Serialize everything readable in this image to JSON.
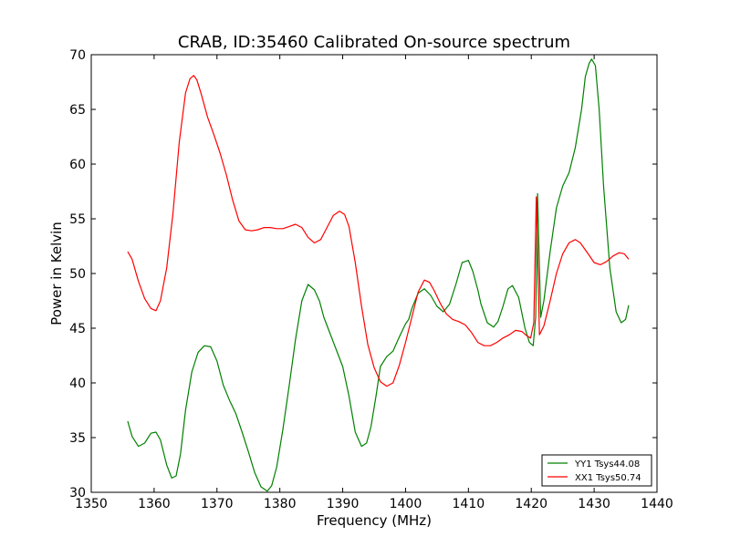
{
  "chart_data": {
    "type": "line",
    "title": "CRAB, ID:35460 Calibrated On-source spectrum",
    "xlabel": "Frequency (MHz)",
    "ylabel": "Power in Kelvin",
    "xlim": [
      1350,
      1440
    ],
    "ylim": [
      30,
      70
    ],
    "xticks": [
      1350,
      1360,
      1370,
      1380,
      1390,
      1400,
      1410,
      1420,
      1430,
      1440
    ],
    "yticks": [
      30,
      35,
      40,
      45,
      50,
      55,
      60,
      65,
      70
    ],
    "xtick_labels": [
      "1350",
      "1360",
      "1370",
      "1380",
      "1390",
      "1400",
      "1410",
      "1420",
      "1430",
      "1440"
    ],
    "ytick_labels": [
      "30",
      "35",
      "40",
      "45",
      "50",
      "55",
      "60",
      "65",
      "70"
    ],
    "grid": false,
    "legend_position": "bottom-right",
    "series": [
      {
        "name": "YY1 Tsys44.08",
        "color": "#008000",
        "x": [
          1355.8,
          1356.5,
          1357.5,
          1358.5,
          1359.5,
          1360.3,
          1361.0,
          1362.0,
          1362.8,
          1363.5,
          1364.2,
          1365.0,
          1366.0,
          1367.0,
          1368.0,
          1369.0,
          1370.0,
          1371.0,
          1372.0,
          1373.0,
          1374.0,
          1375.0,
          1376.0,
          1377.0,
          1378.0,
          1378.7,
          1379.5,
          1380.5,
          1381.5,
          1382.5,
          1383.5,
          1384.5,
          1385.5,
          1386.3,
          1387.0,
          1388.0,
          1389.0,
          1390.0,
          1391.0,
          1392.0,
          1393.0,
          1393.8,
          1394.5,
          1395.3,
          1396.0,
          1397.0,
          1398.0,
          1399.0,
          1400.0,
          1400.5,
          1401.0,
          1402.0,
          1403.0,
          1404.0,
          1405.0,
          1406.0,
          1407.0,
          1408.0,
          1409.0,
          1410.0,
          1410.7,
          1411.5,
          1412.0,
          1413.0,
          1414.0,
          1414.7,
          1415.5,
          1416.3,
          1417.0,
          1418.0,
          1419.0,
          1419.7,
          1420.3,
          1420.7,
          1421.0,
          1421.5,
          1422.0,
          1423.0,
          1424.0,
          1425.0,
          1426.0,
          1427.0,
          1428.0,
          1428.6,
          1429.2,
          1429.6,
          1430.2,
          1430.8,
          1431.5,
          1432.5,
          1433.5,
          1434.3,
          1435.0,
          1435.5
        ],
        "values": [
          36.5,
          35.1,
          34.2,
          34.5,
          35.4,
          35.5,
          34.8,
          32.5,
          31.3,
          31.5,
          33.5,
          37.5,
          41.0,
          42.8,
          43.4,
          43.3,
          42.0,
          39.8,
          38.4,
          37.2,
          35.5,
          33.7,
          31.8,
          30.5,
          30.1,
          30.6,
          32.3,
          35.8,
          39.8,
          44.0,
          47.5,
          49.0,
          48.5,
          47.5,
          46.0,
          44.5,
          43.0,
          41.5,
          38.8,
          35.5,
          34.2,
          34.5,
          36.0,
          38.8,
          41.5,
          42.4,
          42.9,
          44.2,
          45.4,
          45.8,
          46.8,
          48.2,
          48.6,
          48.0,
          47.0,
          46.5,
          47.2,
          49.0,
          51.0,
          51.2,
          50.2,
          48.5,
          47.2,
          45.5,
          45.1,
          45.6,
          47.0,
          48.6,
          48.9,
          47.8,
          45.0,
          43.7,
          43.4,
          46.0,
          57.3,
          46.0,
          47.5,
          52.0,
          56.0,
          58.0,
          59.2,
          61.5,
          65.0,
          68.0,
          69.2,
          69.6,
          69.0,
          65.0,
          58.0,
          50.5,
          46.5,
          45.5,
          45.8,
          47.1
        ]
      },
      {
        "name": "XX1 Tsys50.74",
        "color": "#ff0000",
        "x": [
          1355.8,
          1356.5,
          1357.5,
          1358.5,
          1359.5,
          1360.3,
          1361.0,
          1362.0,
          1363.0,
          1364.0,
          1365.0,
          1365.7,
          1366.3,
          1366.8,
          1367.5,
          1368.5,
          1369.5,
          1370.5,
          1371.5,
          1372.5,
          1373.5,
          1374.5,
          1375.5,
          1376.5,
          1377.5,
          1378.5,
          1379.5,
          1380.5,
          1381.5,
          1382.5,
          1383.5,
          1384.5,
          1385.5,
          1386.5,
          1387.5,
          1388.5,
          1389.5,
          1390.3,
          1391.0,
          1392.0,
          1393.0,
          1394.0,
          1395.0,
          1396.0,
          1397.0,
          1398.0,
          1399.0,
          1400.0,
          1401.0,
          1402.0,
          1403.0,
          1403.8,
          1404.5,
          1405.5,
          1406.5,
          1407.5,
          1408.5,
          1409.5,
          1410.5,
          1411.5,
          1412.5,
          1413.5,
          1414.5,
          1415.5,
          1416.5,
          1417.5,
          1418.5,
          1419.3,
          1419.9,
          1420.4,
          1420.8,
          1421.3,
          1422.0,
          1423.0,
          1424.0,
          1425.0,
          1426.0,
          1427.0,
          1427.8,
          1428.8,
          1430.0,
          1431.0,
          1432.0,
          1433.0,
          1434.0,
          1434.8,
          1435.5
        ],
        "values": [
          52.0,
          51.3,
          49.3,
          47.7,
          46.8,
          46.6,
          47.5,
          50.5,
          55.5,
          62.0,
          66.5,
          67.8,
          68.1,
          67.7,
          66.4,
          64.3,
          62.7,
          61.0,
          59.0,
          56.7,
          54.8,
          54.0,
          53.9,
          54.0,
          54.2,
          54.2,
          54.1,
          54.1,
          54.3,
          54.5,
          54.2,
          53.3,
          52.8,
          53.1,
          54.2,
          55.3,
          55.7,
          55.4,
          54.3,
          51.0,
          47.0,
          43.5,
          41.4,
          40.1,
          39.7,
          40.0,
          41.6,
          43.7,
          46.0,
          48.3,
          49.4,
          49.2,
          48.5,
          47.3,
          46.3,
          45.8,
          45.6,
          45.3,
          44.6,
          43.7,
          43.4,
          43.4,
          43.7,
          44.1,
          44.4,
          44.8,
          44.7,
          44.3,
          44.1,
          45.5,
          57.0,
          44.4,
          45.2,
          47.5,
          50.0,
          51.8,
          52.8,
          53.1,
          52.8,
          52.0,
          51.0,
          50.8,
          51.1,
          51.6,
          51.9,
          51.8,
          51.3
        ]
      }
    ]
  }
}
